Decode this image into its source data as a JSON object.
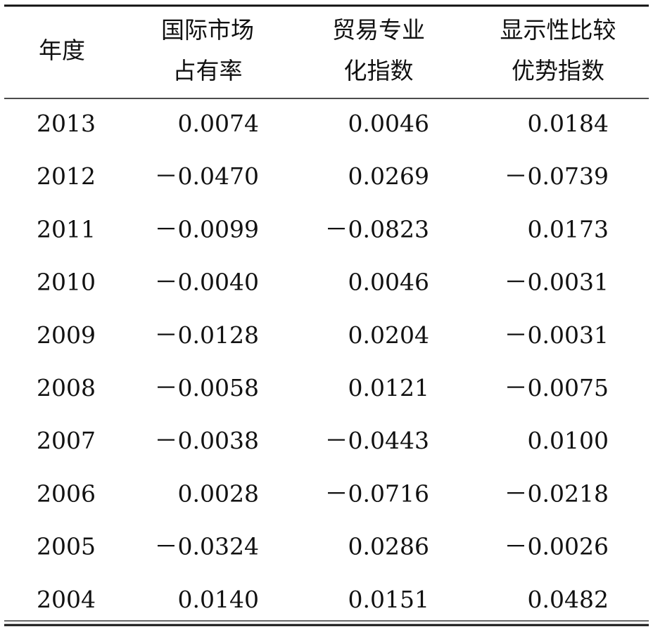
{
  "table": {
    "header": [
      [
        "年度"
      ],
      [
        "国际市场",
        "占有率"
      ],
      [
        "贸易专业",
        "化指数"
      ],
      [
        "显示性比较",
        "优势指数"
      ]
    ],
    "rows": [
      [
        "2013",
        "0.0074",
        "0.0046",
        "0.0184"
      ],
      [
        "2012",
        "－0.0470",
        "0.0269",
        "－0.0739"
      ],
      [
        "2011",
        "－0.0099",
        "－0.0823",
        "0.0173"
      ],
      [
        "2010",
        "－0.0040",
        "0.0046",
        "－0.0031"
      ],
      [
        "2009",
        "－0.0128",
        "0.0204",
        "－0.0031"
      ],
      [
        "2008",
        "－0.0058",
        "0.0121",
        "－0.0075"
      ],
      [
        "2007",
        "－0.0038",
        "－0.0443",
        "0.0100"
      ],
      [
        "2006",
        "0.0028",
        "－0.0716",
        "－0.0218"
      ],
      [
        "2005",
        "－0.0324",
        "0.0286",
        "－0.0026"
      ],
      [
        "2004",
        "0.0140",
        "0.0151",
        "0.0482"
      ]
    ]
  }
}
